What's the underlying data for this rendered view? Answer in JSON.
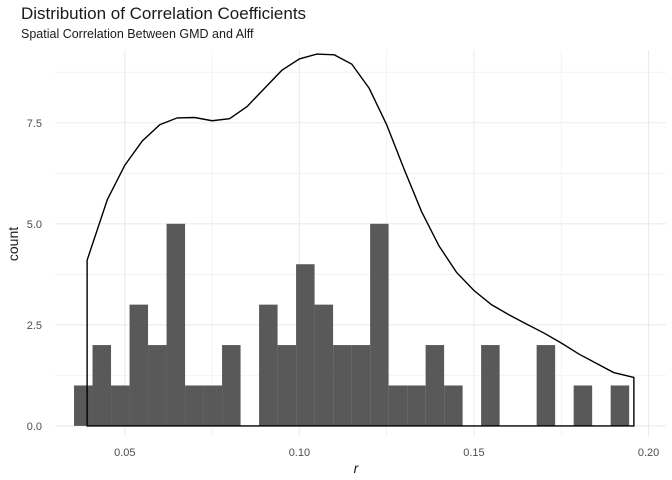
{
  "chart_data": {
    "type": "bar",
    "title": "Distribution of Correlation Coefficients",
    "subtitle": "Spatial Correlation Between GMD and Alff",
    "xlabel": "r",
    "ylabel": "count",
    "xlim": [
      0.03,
      0.205
    ],
    "ylim": [
      -0.25,
      9.3
    ],
    "x_ticks": [
      0.05,
      0.1,
      0.15,
      0.2
    ],
    "x_tick_labels": [
      "0.05",
      "0.10",
      "0.15",
      "0.20"
    ],
    "y_ticks": [
      0,
      2.5,
      5,
      7.5
    ],
    "y_tick_labels": [
      "0.0",
      "2.5",
      "5.0",
      "7.5"
    ],
    "bin_width": 0.0053,
    "bin_centers": [
      0.0381,
      0.0434,
      0.0487,
      0.054,
      0.0593,
      0.0646,
      0.0699,
      0.0752,
      0.0805,
      0.0858,
      0.0911,
      0.0964,
      0.1017,
      0.107,
      0.1123,
      0.1176,
      0.1229,
      0.1282,
      0.1335,
      0.1388,
      0.1441,
      0.1494,
      0.1547,
      0.16,
      0.1653,
      0.1706,
      0.1759,
      0.1812,
      0.1865,
      0.1918
    ],
    "counts": [
      1,
      2,
      1,
      3,
      2,
      5,
      1,
      1,
      2,
      0,
      3,
      2,
      4,
      3,
      2,
      2,
      5,
      1,
      1,
      2,
      1,
      0,
      2,
      0,
      0,
      2,
      0,
      1,
      0,
      1
    ],
    "density_curve": {
      "x": [
        0.0392,
        0.045,
        0.05,
        0.055,
        0.06,
        0.065,
        0.07,
        0.075,
        0.08,
        0.085,
        0.09,
        0.095,
        0.1,
        0.105,
        0.11,
        0.115,
        0.12,
        0.125,
        0.13,
        0.135,
        0.14,
        0.145,
        0.15,
        0.155,
        0.16,
        0.165,
        0.17,
        0.175,
        0.18,
        0.185,
        0.19,
        0.1958
      ],
      "y": [
        4.1,
        5.6,
        6.45,
        7.05,
        7.45,
        7.62,
        7.63,
        7.55,
        7.6,
        7.9,
        8.35,
        8.8,
        9.08,
        9.2,
        9.18,
        8.95,
        8.35,
        7.45,
        6.35,
        5.3,
        4.45,
        3.8,
        3.35,
        3.0,
        2.75,
        2.52,
        2.3,
        2.05,
        1.78,
        1.55,
        1.32,
        1.2
      ]
    },
    "grid": true,
    "colors": {
      "bar": "#595959",
      "curve": "#000000",
      "grid": "#ebebeb"
    }
  }
}
